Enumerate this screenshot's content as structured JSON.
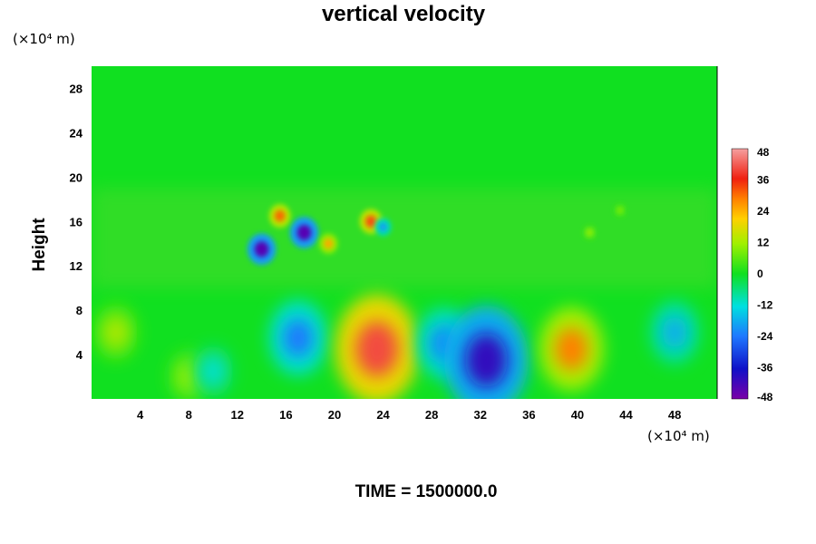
{
  "chart_data": {
    "type": "heatmap",
    "title": "vertical velocity",
    "ylabel": "Height",
    "xlabel": "",
    "x_unit": "(×10⁴ m)",
    "y_unit": "(×10⁴ m)",
    "footer": "TIME = 1500000.0",
    "xlim": [
      0,
      51.5
    ],
    "ylim": [
      0,
      30
    ],
    "x_ticks": [
      "4",
      "8",
      "12",
      "16",
      "20",
      "24",
      "28",
      "32",
      "36",
      "40",
      "44",
      "48"
    ],
    "y_ticks": [
      "4",
      "8",
      "12",
      "16",
      "20",
      "24",
      "28"
    ],
    "colorbar": {
      "range": [
        -48,
        48
      ],
      "ticks": [
        "48",
        "36",
        "24",
        "12",
        "0",
        "-12",
        "-24",
        "-36",
        "-48"
      ]
    },
    "features": [
      {
        "x": 2.0,
        "y": 6.0,
        "value": 14
      },
      {
        "x": 8.0,
        "y": 2.0,
        "value": 12
      },
      {
        "x": 10.0,
        "y": 2.5,
        "value": -12
      },
      {
        "x": 17.0,
        "y": 5.5,
        "value": -24
      },
      {
        "x": 23.5,
        "y": 4.5,
        "value": 40
      },
      {
        "x": 29.0,
        "y": 5.0,
        "value": -22
      },
      {
        "x": 32.5,
        "y": 3.5,
        "value": -40
      },
      {
        "x": 39.5,
        "y": 4.5,
        "value": 28
      },
      {
        "x": 48.0,
        "y": 6.0,
        "value": -18
      },
      {
        "x": 14.0,
        "y": 13.5,
        "value": -44
      },
      {
        "x": 17.5,
        "y": 15.0,
        "value": -44
      },
      {
        "x": 15.5,
        "y": 16.5,
        "value": 30
      },
      {
        "x": 19.5,
        "y": 14.0,
        "value": 24
      },
      {
        "x": 23.0,
        "y": 16.0,
        "value": 32
      },
      {
        "x": 24.0,
        "y": 15.5,
        "value": -20
      },
      {
        "x": 41.0,
        "y": 15.0,
        "value": 12
      },
      {
        "x": 43.5,
        "y": 17.0,
        "value": 10
      }
    ]
  }
}
